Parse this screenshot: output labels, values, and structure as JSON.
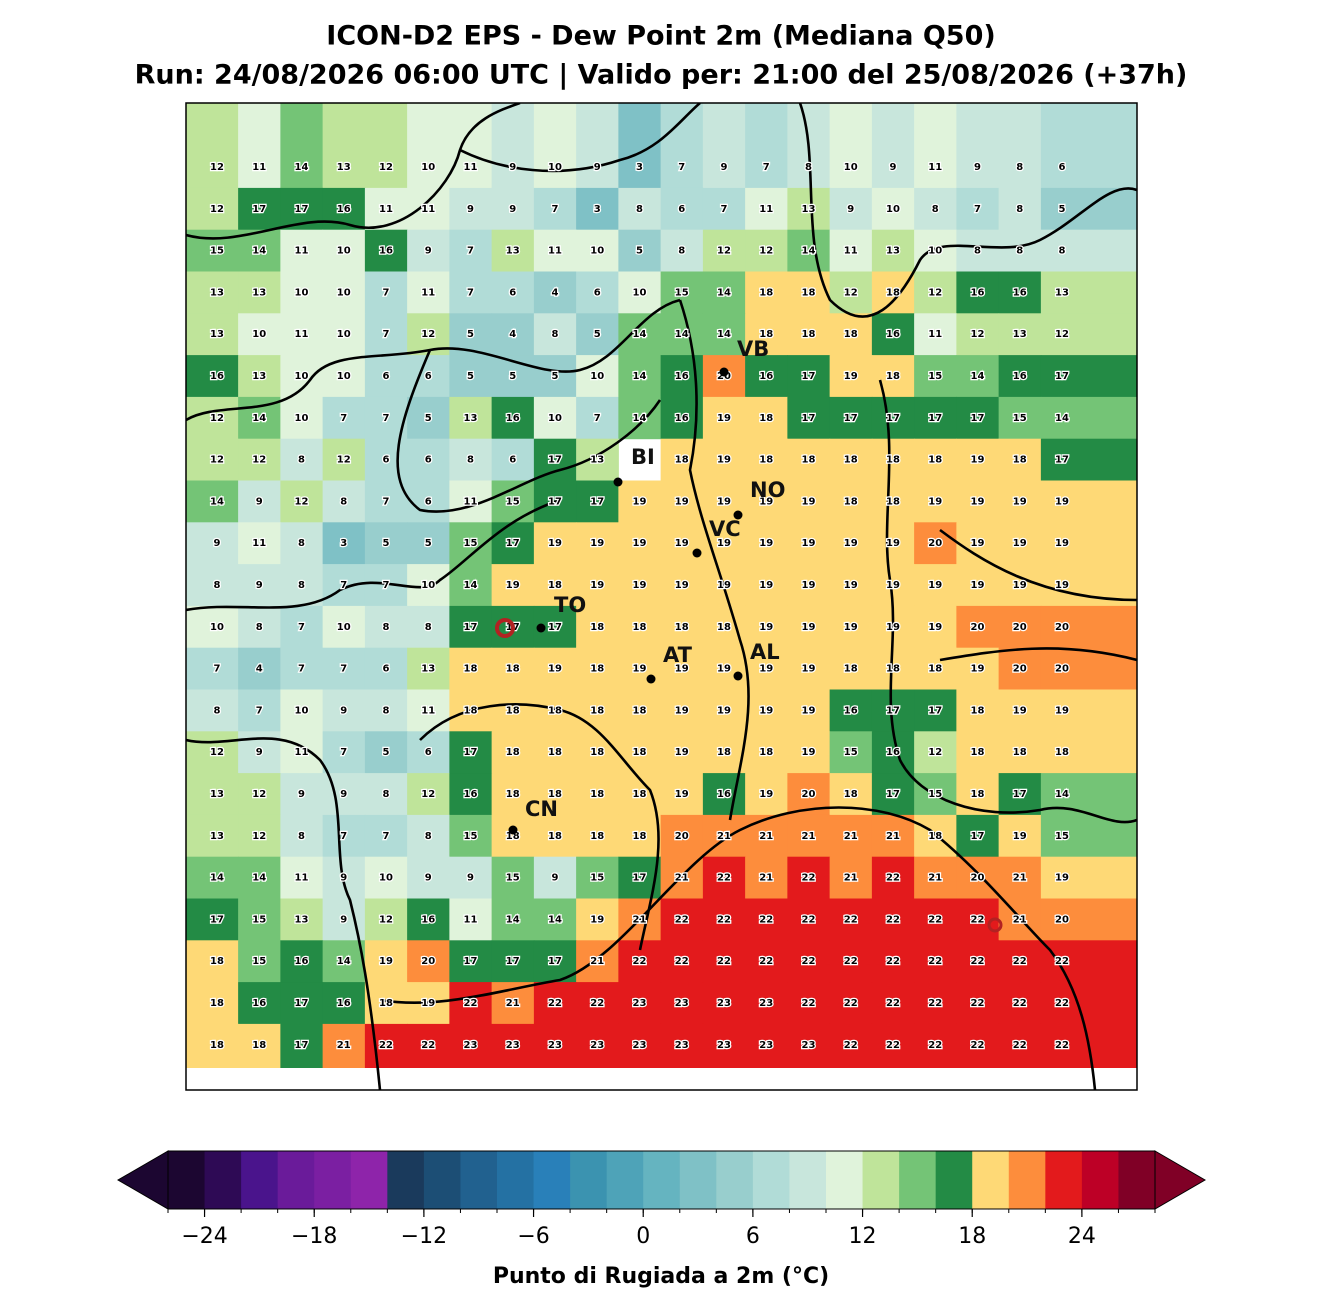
{
  "header": {
    "title": "ICON-D2 EPS - Dew Point 2m (Mediana Q50)",
    "subtitle": "Run: 24/08/2026 06:00 UTC | Valido per: 21:00 del 25/08/2026 (+37h)"
  },
  "map": {
    "cities": [
      "VB",
      "BI",
      "NO",
      "VC",
      "TO",
      "AT",
      "AL",
      "CN"
    ],
    "grid_values": [
      [
        12,
        11,
        14,
        13,
        12,
        10,
        11,
        9,
        10,
        9,
        3,
        7,
        9,
        7,
        8,
        10,
        9,
        11,
        9,
        8,
        6
      ],
      [
        12,
        17,
        17,
        16,
        11,
        11,
        9,
        9,
        7,
        3,
        8,
        6,
        7,
        11,
        13,
        9,
        10,
        8,
        7,
        8,
        5
      ],
      [
        15,
        14,
        11,
        10,
        16,
        9,
        7,
        13,
        11,
        10,
        5,
        8,
        12,
        12,
        14,
        11,
        13,
        10,
        8,
        8,
        8
      ],
      [
        13,
        13,
        10,
        10,
        7,
        11,
        7,
        6,
        4,
        6,
        10,
        15,
        14,
        18,
        18,
        12,
        18,
        12,
        16,
        16,
        13
      ],
      [
        13,
        10,
        11,
        10,
        7,
        12,
        5,
        4,
        8,
        5,
        14,
        14,
        14,
        18,
        18,
        18,
        16,
        11,
        12,
        13,
        12
      ],
      [
        16,
        13,
        10,
        10,
        6,
        6,
        5,
        5,
        5,
        10,
        14,
        16,
        20,
        16,
        17,
        19,
        18,
        15,
        14,
        16,
        17
      ],
      [
        12,
        14,
        10,
        7,
        7,
        5,
        13,
        16,
        10,
        7,
        14,
        16,
        19,
        18,
        17,
        17,
        17,
        17,
        17,
        15,
        14
      ],
      [
        12,
        12,
        8,
        12,
        6,
        6,
        8,
        6,
        17,
        13,
        null,
        18,
        19,
        18,
        18,
        18,
        18,
        18,
        19,
        18,
        17
      ],
      [
        14,
        9,
        12,
        8,
        7,
        6,
        11,
        15,
        17,
        17,
        19,
        19,
        19,
        19,
        19,
        18,
        18,
        19,
        19,
        19,
        19
      ],
      [
        9,
        11,
        8,
        3,
        5,
        5,
        15,
        17,
        19,
        19,
        19,
        19,
        19,
        19,
        19,
        19,
        19,
        20,
        19,
        19,
        19
      ],
      [
        8,
        9,
        8,
        7,
        7,
        10,
        14,
        19,
        18,
        19,
        19,
        19,
        19,
        19,
        19,
        19,
        19,
        19,
        19,
        19,
        19
      ],
      [
        10,
        8,
        7,
        10,
        8,
        8,
        17,
        17,
        17,
        18,
        18,
        18,
        18,
        19,
        19,
        19,
        19,
        19,
        20,
        20,
        20
      ],
      [
        7,
        4,
        7,
        7,
        6,
        13,
        18,
        18,
        19,
        18,
        19,
        19,
        19,
        19,
        19,
        18,
        18,
        18,
        19,
        20,
        20
      ],
      [
        8,
        7,
        10,
        9,
        8,
        11,
        18,
        18,
        18,
        18,
        18,
        19,
        19,
        19,
        19,
        16,
        17,
        17,
        18,
        19,
        19
      ],
      [
        12,
        9,
        11,
        7,
        5,
        6,
        17,
        18,
        18,
        18,
        18,
        19,
        18,
        18,
        19,
        15,
        16,
        12,
        18,
        18,
        18
      ],
      [
        13,
        12,
        9,
        9,
        8,
        12,
        16,
        18,
        18,
        18,
        18,
        19,
        16,
        19,
        20,
        18,
        17,
        15,
        18,
        17,
        14
      ],
      [
        13,
        12,
        8,
        7,
        7,
        8,
        15,
        18,
        18,
        18,
        18,
        20,
        21,
        21,
        21,
        21,
        21,
        18,
        17,
        19,
        15
      ],
      [
        14,
        14,
        11,
        9,
        10,
        9,
        9,
        15,
        9,
        15,
        17,
        21,
        22,
        21,
        22,
        21,
        22,
        21,
        20,
        21,
        19
      ],
      [
        17,
        15,
        13,
        9,
        12,
        16,
        11,
        14,
        14,
        19,
        21,
        22,
        22,
        22,
        22,
        22,
        22,
        22,
        22,
        21,
        20
      ],
      [
        18,
        15,
        16,
        14,
        19,
        20,
        17,
        17,
        17,
        21,
        22,
        22,
        22,
        22,
        22,
        22,
        22,
        22,
        22,
        22,
        22
      ],
      [
        18,
        16,
        17,
        16,
        18,
        19,
        22,
        21,
        22,
        22,
        23,
        23,
        23,
        23,
        22,
        22,
        22,
        22,
        22,
        22,
        22
      ],
      [
        18,
        18,
        17,
        21,
        22,
        22,
        23,
        23,
        23,
        23,
        23,
        23,
        23,
        23,
        23,
        22,
        22,
        22,
        22,
        22,
        22
      ]
    ]
  },
  "colorbar": {
    "label": "Punto di Rugiada a 2m (°C)",
    "range": [
      -26,
      28
    ],
    "colors": [
      "#1c0631",
      "#2e0a55",
      "#4a148c",
      "#6a1b9a",
      "#7b1fa2",
      "#8e24aa",
      "#1a3a5c",
      "#1c4e75",
      "#21618f",
      "#2471a3",
      "#2980b9",
      "#3b93b0",
      "#4ea3b8",
      "#65b4c0",
      "#7fc1c6",
      "#98cecd",
      "#b1dcd7",
      "#c8e6dc",
      "#e0f3db",
      "#bfe49a",
      "#74c476",
      "#238b45",
      "#fed976",
      "#fd8d3c",
      "#e31a1c",
      "#bd0026",
      "#800026"
    ],
    "ticks": [
      {
        "value": -24,
        "label": "−24"
      },
      {
        "value": -18,
        "label": "−18"
      },
      {
        "value": -12,
        "label": "−12"
      },
      {
        "value": -6,
        "label": "−6"
      },
      0,
      6,
      12,
      18,
      24
    ]
  }
}
